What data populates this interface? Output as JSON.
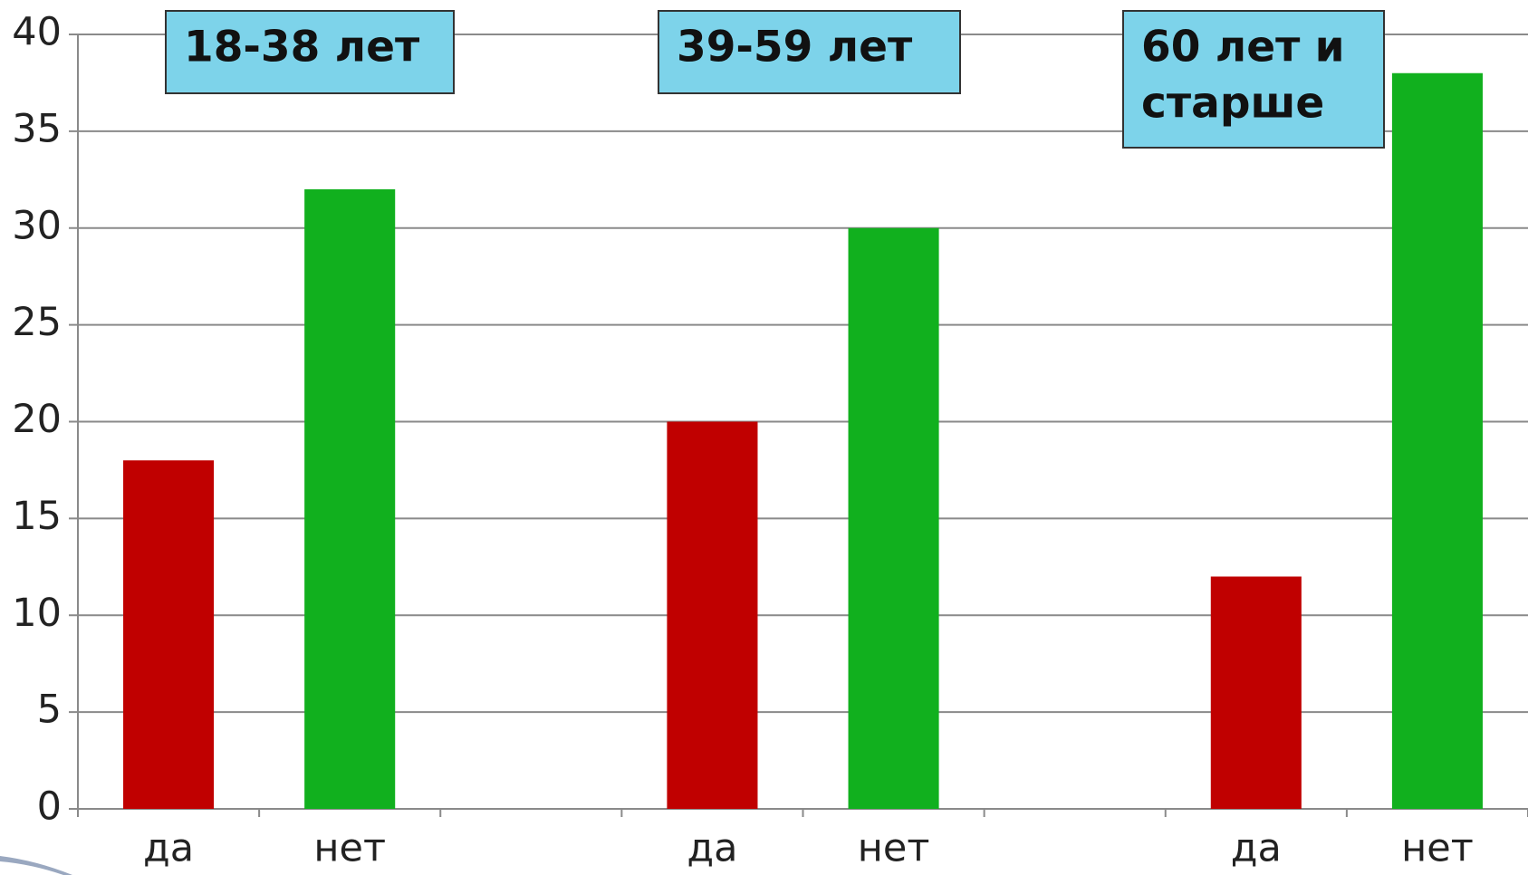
{
  "chart_data": {
    "type": "bar",
    "categories": [
      "да",
      "нет",
      null,
      "да",
      "нет",
      null,
      "да",
      "нет"
    ],
    "values": [
      18,
      32,
      null,
      20,
      30,
      null,
      12,
      38
    ],
    "colors": [
      "#c00000",
      "#11b01e",
      null,
      "#c00000",
      "#11b01e",
      null,
      "#c00000",
      "#11b01e"
    ],
    "ylim": [
      0,
      40
    ],
    "yticks": [
      0,
      5,
      10,
      15,
      20,
      25,
      30,
      35,
      40
    ],
    "grid": true,
    "annotations": [
      {
        "lines": [
          "18-38 лет"
        ]
      },
      {
        "lines": [
          "39-59 лет"
        ]
      },
      {
        "lines": [
          "60 лет и",
          "старше"
        ]
      }
    ]
  }
}
